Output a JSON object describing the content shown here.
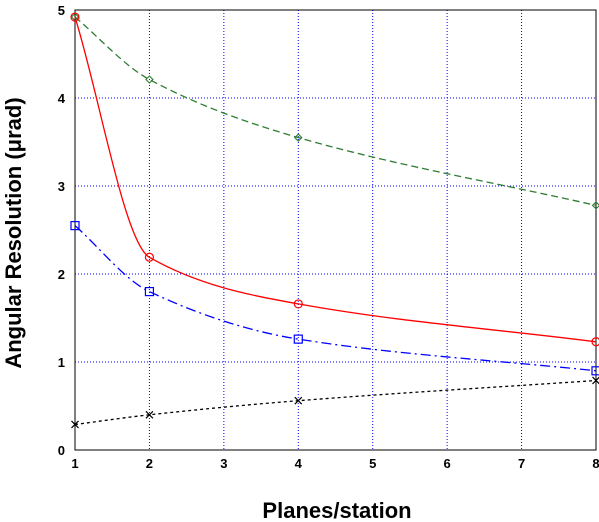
{
  "chart_data": {
    "type": "line",
    "title": "",
    "xlabel": "Planes/station",
    "ylabel": "Angular Resolution (μrad)",
    "xlim": [
      1,
      8
    ],
    "ylim": [
      0,
      5
    ],
    "x_ticks": [
      "1",
      "2",
      "3",
      "4",
      "5",
      "6",
      "7",
      "8"
    ],
    "y_ticks": [
      "0",
      "1",
      "2",
      "3",
      "4",
      "5"
    ],
    "grid": true,
    "legend": "none",
    "series": [
      {
        "color": "#2e7d32",
        "dash": "dashed",
        "marker": "diamond",
        "x": [
          1,
          2,
          4,
          8
        ],
        "y": [
          4.92,
          4.21,
          3.55,
          2.78
        ]
      },
      {
        "color": "#ff0000",
        "dash": "solid",
        "marker": "circle",
        "x": [
          1,
          2,
          4,
          8
        ],
        "y": [
          4.92,
          2.19,
          1.66,
          1.23
        ]
      },
      {
        "color": "#0000ff",
        "dash": "dashdot",
        "marker": "square",
        "x": [
          1,
          2,
          4,
          8
        ],
        "y": [
          2.55,
          1.8,
          1.26,
          0.9
        ]
      },
      {
        "color": "#000000",
        "dash": "dotted",
        "marker": "x",
        "x": [
          1,
          2,
          4,
          8
        ],
        "y": [
          0.29,
          0.4,
          0.56,
          0.79
        ]
      }
    ]
  }
}
